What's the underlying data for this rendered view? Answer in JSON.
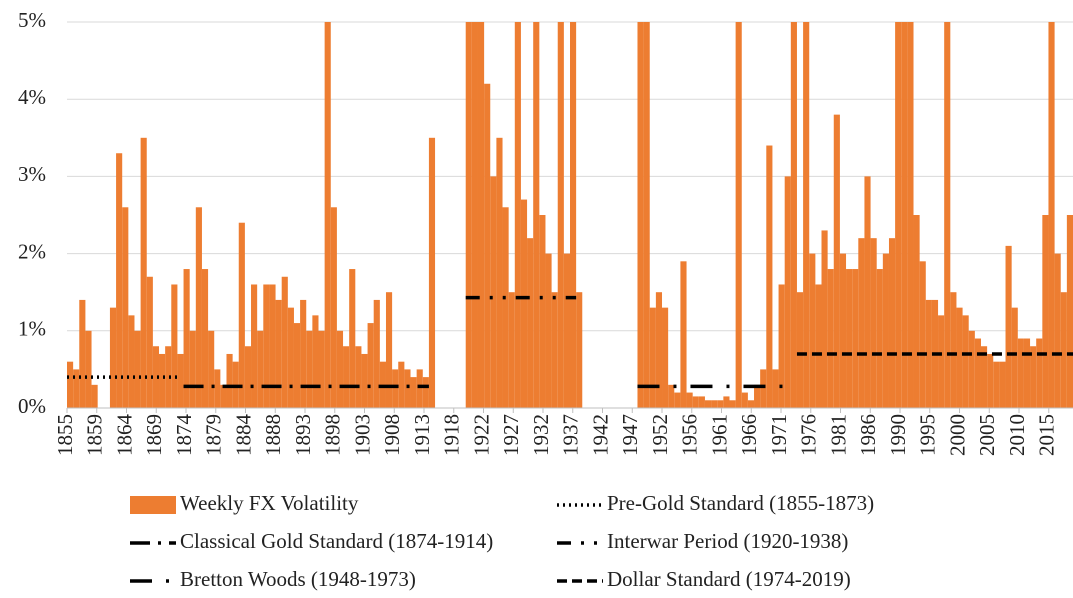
{
  "chart_data": {
    "type": "bar",
    "x": [
      1855,
      1856,
      1857,
      1858,
      1859,
      1860,
      1861,
      1862,
      1863,
      1864,
      1865,
      1866,
      1867,
      1868,
      1869,
      1870,
      1871,
      1872,
      1873,
      1874,
      1875,
      1876,
      1877,
      1878,
      1879,
      1880,
      1881,
      1882,
      1883,
      1884,
      1885,
      1886,
      1887,
      1888,
      1889,
      1890,
      1891,
      1892,
      1893,
      1894,
      1895,
      1896,
      1897,
      1898,
      1899,
      1900,
      1901,
      1902,
      1903,
      1904,
      1905,
      1906,
      1907,
      1908,
      1909,
      1910,
      1911,
      1912,
      1913,
      1914,
      1915,
      1916,
      1917,
      1918,
      1919,
      1920,
      1921,
      1922,
      1923,
      1924,
      1925,
      1926,
      1927,
      1928,
      1929,
      1930,
      1931,
      1932,
      1933,
      1934,
      1935,
      1936,
      1937,
      1938,
      1939,
      1940,
      1941,
      1942,
      1943,
      1944,
      1945,
      1946,
      1947,
      1948,
      1949,
      1950,
      1951,
      1952,
      1953,
      1954,
      1955,
      1956,
      1957,
      1958,
      1959,
      1960,
      1961,
      1962,
      1963,
      1964,
      1965,
      1966,
      1967,
      1968,
      1969,
      1970,
      1971,
      1972,
      1973,
      1974,
      1975,
      1976,
      1977,
      1978,
      1979,
      1980,
      1981,
      1982,
      1983,
      1984,
      1985,
      1986,
      1987,
      1988,
      1989,
      1990,
      1991,
      1992,
      1993,
      1994,
      1995,
      1996,
      1997,
      1998,
      1999,
      2000,
      2001,
      2002,
      2003,
      2004,
      2005,
      2006,
      2007,
      2008,
      2009,
      2010,
      2011,
      2012,
      2013,
      2014,
      2015,
      2016,
      2017,
      2018
    ],
    "series": [
      {
        "name": "Weekly FX Volatility",
        "color": "#ed7d31",
        "values": [
          0.6,
          0.5,
          1.4,
          1.0,
          0.3,
          null,
          null,
          1.3,
          3.3,
          2.6,
          1.2,
          1.0,
          3.5,
          1.7,
          0.8,
          0.7,
          0.8,
          1.6,
          0.7,
          1.8,
          1.0,
          2.6,
          1.8,
          1.0,
          0.5,
          0.3,
          0.7,
          0.6,
          2.4,
          0.8,
          1.6,
          1.0,
          1.6,
          1.6,
          1.4,
          1.7,
          1.3,
          1.1,
          1.4,
          1.0,
          1.2,
          1.0,
          5,
          2.6,
          1.0,
          0.8,
          1.8,
          0.8,
          0.7,
          1.1,
          1.4,
          0.6,
          1.5,
          0.5,
          0.6,
          0.5,
          0.4,
          0.5,
          0.4,
          3.5,
          null,
          null,
          null,
          null,
          null,
          5,
          5,
          5,
          4.2,
          3.0,
          3.5,
          2.6,
          1.5,
          5,
          2.7,
          2.2,
          5,
          2.5,
          2.0,
          1.5,
          5,
          2.0,
          5,
          1.5,
          null,
          null,
          null,
          null,
          null,
          null,
          null,
          null,
          null,
          5,
          5,
          1.3,
          1.5,
          1.3,
          0.3,
          0.2,
          1.9,
          0.2,
          0.15,
          0.15,
          0.1,
          0.1,
          0.1,
          0.15,
          0.1,
          5,
          0.2,
          0.1,
          0.3,
          0.5,
          3.4,
          0.5,
          1.6,
          3.0,
          5,
          1.5,
          5,
          2.0,
          1.6,
          2.3,
          1.8,
          3.8,
          2.0,
          1.8,
          1.8,
          2.2,
          3.0,
          2.2,
          1.8,
          2.0,
          2.2,
          5,
          5,
          5,
          2.5,
          1.9,
          1.4,
          1.4,
          1.2,
          5,
          1.5,
          1.3,
          1.2,
          1.0,
          0.9,
          0.8,
          0.7,
          0.6,
          0.6,
          2.1,
          1.3,
          0.9,
          0.9,
          0.8,
          0.9,
          2.5,
          5,
          2.0,
          1.5,
          2.5
        ]
      }
    ],
    "periods": [
      {
        "name": "Pre-Gold Standard (1855-1873)",
        "value": 0.4,
        "x": [
          1855,
          1873
        ],
        "dash": "dotted"
      },
      {
        "name": "Classical Gold Standard (1874-1914)",
        "value": 0.28,
        "x": [
          1874,
          1914
        ],
        "dash": "long-dash-dot"
      },
      {
        "name": "Interwar Period (1920-1938)",
        "value": 1.43,
        "x": [
          1920,
          1938
        ],
        "dash": "dash-dot-dot"
      },
      {
        "name": "Bretton Woods (1948-1973)",
        "value": 0.28,
        "x": [
          1948,
          1973
        ],
        "dash": "long-dash-dot-wide"
      },
      {
        "name": "Dollar Standard (1974-2019)",
        "value": 0.7,
        "x": [
          1974,
          2019
        ],
        "dash": "dashed"
      }
    ],
    "xlim": [
      1855,
      2019
    ],
    "xticks": [
      1855,
      {
        "value": 1859.85,
        "label": "1859"
      },
      {
        "value": 1864.7,
        "label": "1864"
      },
      {
        "value": 1869.55,
        "label": "1869"
      },
      {
        "value": 1874.4,
        "label": "1874"
      },
      {
        "value": 1879.25,
        "label": "1879"
      },
      {
        "value": 1884.1,
        "label": "1884"
      },
      {
        "value": 1888.95,
        "label": "1888"
      },
      {
        "value": 1893.8,
        "label": "1893"
      },
      {
        "value": 1898.65,
        "label": "1898"
      },
      {
        "value": 1903.5,
        "label": "1903"
      },
      {
        "value": 1908.35,
        "label": "1908"
      },
      {
        "value": 1913.2,
        "label": "1913"
      },
      {
        "value": 1918.05,
        "label": "1918"
      },
      {
        "value": 1922.9,
        "label": "1922"
      },
      {
        "value": 1927.75,
        "label": "1927"
      },
      {
        "value": 1932.6,
        "label": "1932"
      },
      {
        "value": 1937.45,
        "label": "1937"
      },
      {
        "value": 1942.3,
        "label": "1942"
      },
      {
        "value": 1947.15,
        "label": "1947"
      },
      1952,
      {
        "value": 1956.85,
        "label": "1956"
      },
      {
        "value": 1961.7,
        "label": "1961"
      },
      {
        "value": 1966.55,
        "label": "1966"
      },
      {
        "value": 1971.4,
        "label": "1971"
      },
      {
        "value": 1976.25,
        "label": "1976"
      },
      {
        "value": 1981.1,
        "label": "1981"
      },
      {
        "value": 1985.95,
        "label": "1986"
      },
      {
        "value": 1990.8,
        "label": "1990"
      },
      {
        "value": 1995.65,
        "label": "1995"
      },
      {
        "value": 2000.5,
        "label": "2000"
      },
      {
        "value": 2005.35,
        "label": "2005"
      },
      {
        "value": 2010.2,
        "label": "2010"
      },
      {
        "value": 2015.05,
        "label": "2015"
      }
    ],
    "ylim": [
      0,
      5
    ],
    "yticks": [
      {
        "value": 0,
        "label": "0%"
      },
      {
        "value": 1,
        "label": "1%"
      },
      {
        "value": 2,
        "label": "2%"
      },
      {
        "value": 3,
        "label": "3%"
      },
      {
        "value": 4,
        "label": "4%"
      },
      {
        "value": 5,
        "label": "5%"
      }
    ],
    "grid": true
  }
}
